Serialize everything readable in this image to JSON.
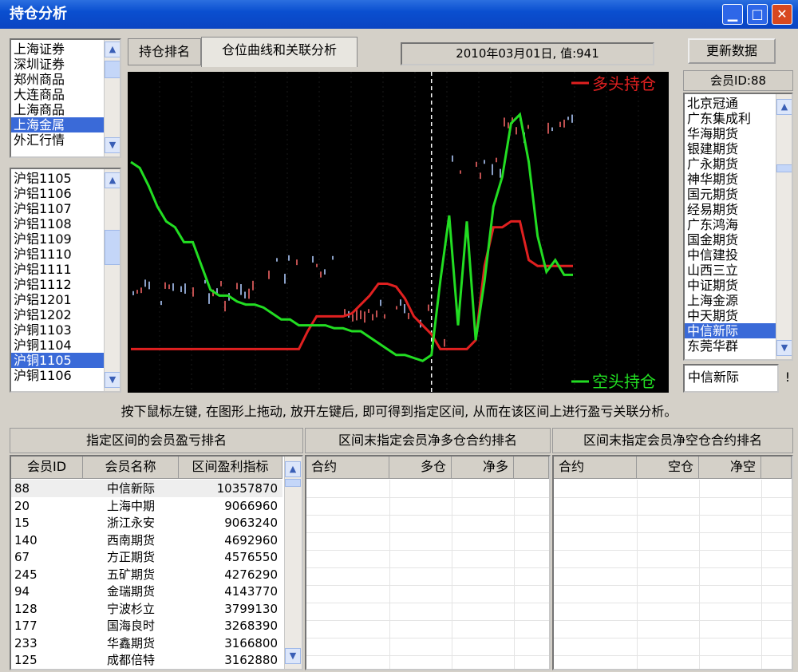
{
  "window": {
    "title": "持仓分析",
    "min_label": "▁",
    "max_label": "□",
    "close_label": "✕"
  },
  "markets": {
    "items": [
      "上海证券",
      "深圳证券",
      "郑州商品",
      "大连商品",
      "上海商品",
      "上海金属",
      "外汇行情"
    ],
    "selected_index": 5
  },
  "contracts": {
    "items": [
      "沪铝1105",
      "沪铝1106",
      "沪铝1107",
      "沪铝1108",
      "沪铝1109",
      "沪铝1110",
      "沪铝1111",
      "沪铝1112",
      "沪铝1201",
      "沪铝1202",
      "沪铜1103",
      "沪铜1104",
      "沪铜1105",
      "沪铜1106"
    ],
    "selected_index": 12
  },
  "tabs": [
    {
      "label": "持仓排名"
    },
    {
      "label": "仓位曲线和关联分析"
    }
  ],
  "active_tab": 1,
  "date_value": "2010年03月01日, 值:941",
  "update_button": "更新数据",
  "member_id_label": "会员ID:88",
  "members": {
    "items": [
      "北京冠通",
      "广东集成利",
      "华海期货",
      "银建期货",
      "广永期货",
      "神华期货",
      "国元期货",
      "经易期货",
      "广东鸿海",
      "国金期货",
      "中信建投",
      "山西三立",
      "中证期货",
      "上海金源",
      "中天期货",
      "中信新际",
      "东莞华群"
    ],
    "selected_index": 15
  },
  "selected_member_field": "中信新际",
  "chart": {
    "legend_long": "多头持仓",
    "legend_short": "空头持仓",
    "colors": {
      "long": "#e02020",
      "short": "#22dd22",
      "candle": "#8aa0c8",
      "candle_up": "#c05050",
      "bg": "#000000",
      "cursor": "#ffffff"
    }
  },
  "chart_data": {
    "type": "line",
    "series": [
      {
        "name": "多头持仓",
        "values": [
          0.88,
          0.88,
          0.88,
          0.88,
          0.88,
          0.88,
          0.88,
          0.88,
          0.88,
          0.88,
          0.88,
          0.88,
          0.88,
          0.88,
          0.88,
          0.88,
          0.88,
          0.88,
          0.88,
          0.88,
          0.82,
          0.77,
          0.77,
          0.77,
          0.77,
          0.76,
          0.73,
          0.7,
          0.66,
          0.66,
          0.67,
          0.71,
          0.77,
          0.8,
          0.83,
          0.88,
          0.88,
          0.88,
          0.88,
          0.85,
          0.6,
          0.47,
          0.47,
          0.45,
          0.45,
          0.58,
          0.6,
          0.6,
          0.6,
          0.6,
          0.6
        ]
      },
      {
        "name": "空头持仓",
        "values": [
          0.25,
          0.27,
          0.33,
          0.4,
          0.45,
          0.47,
          0.52,
          0.52,
          0.6,
          0.68,
          0.7,
          0.7,
          0.72,
          0.73,
          0.73,
          0.74,
          0.76,
          0.78,
          0.78,
          0.8,
          0.8,
          0.8,
          0.8,
          0.81,
          0.81,
          0.82,
          0.82,
          0.84,
          0.86,
          0.88,
          0.9,
          0.9,
          0.91,
          0.92,
          0.9,
          0.65,
          0.43,
          0.8,
          0.45,
          0.85,
          0.65,
          0.4,
          0.3,
          0.12,
          0.09,
          0.25,
          0.5,
          0.62,
          0.58,
          0.63,
          0.63
        ]
      }
    ],
    "cursor_index": 34
  },
  "instruction": "按下鼠标左键, 在图形上拖动, 放开左键后, 即可得到指定区间, 从而在该区间上进行盈亏关联分析。",
  "panels": {
    "left_title": "指定区间的会员盈亏排名",
    "mid_title": "区间末指定会员净多仓合约排名",
    "right_title": "区间末指定会员净空仓合约排名"
  },
  "rank_table": {
    "headers": [
      "会员ID",
      "会员名称",
      "区间盈利指标"
    ],
    "rows": [
      [
        "88",
        "中信新际",
        "10357870"
      ],
      [
        "20",
        "上海中期",
        "9066960"
      ],
      [
        "15",
        "浙江永安",
        "9063240"
      ],
      [
        "140",
        "西南期货",
        "4692960"
      ],
      [
        "67",
        "方正期货",
        "4576550"
      ],
      [
        "245",
        "五矿期货",
        "4276290"
      ],
      [
        "94",
        "金瑞期货",
        "4143770"
      ],
      [
        "128",
        "宁波杉立",
        "3799130"
      ],
      [
        "177",
        "国海良时",
        "3268390"
      ],
      [
        "233",
        "华鑫期货",
        "3166800"
      ],
      [
        "125",
        "成都倍特",
        "3162880"
      ]
    ]
  },
  "long_table": {
    "headers": [
      "合约",
      "多仓",
      "净多"
    ]
  },
  "short_table": {
    "headers": [
      "合约",
      "空仓",
      "净空"
    ]
  },
  "arrows": {
    "up": "▲",
    "down": "▼"
  }
}
